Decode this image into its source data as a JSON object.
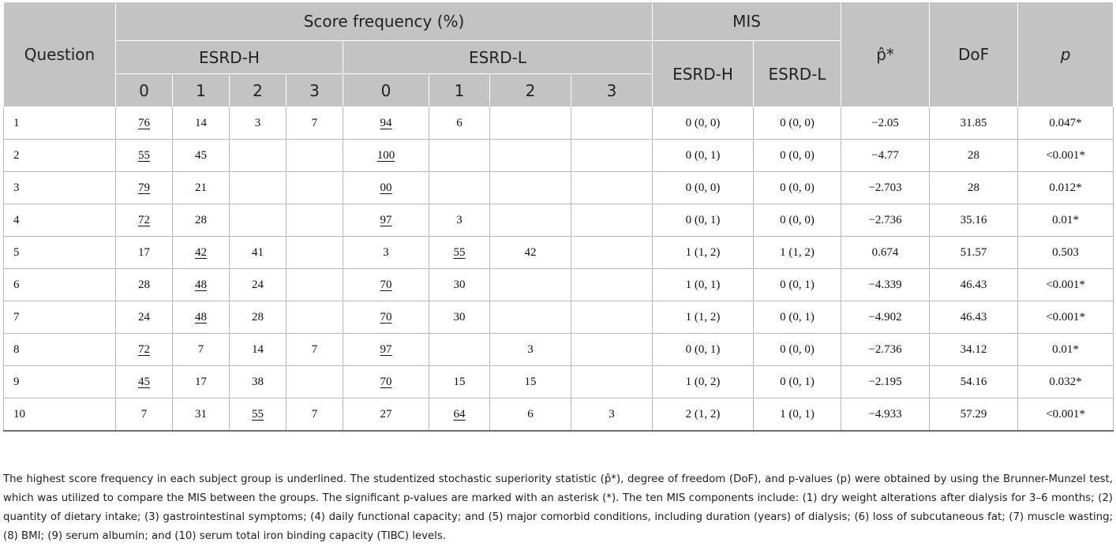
{
  "header": {
    "question": "Question",
    "score_frequency": "Score frequency (%)",
    "mis": "MIS",
    "p_hat": "p̂*",
    "dof": "DoF",
    "p": "p",
    "esrd_h": "ESRD-H",
    "esrd_l": "ESRD-L",
    "scores": [
      "0",
      "1",
      "2",
      "3"
    ]
  },
  "rows": [
    {
      "q": "1",
      "h": [
        "76",
        "14",
        "3",
        "7"
      ],
      "l": [
        "94",
        "6",
        "",
        ""
      ],
      "mis_h": "0 (0, 0)",
      "mis_l": "0 (0, 0)",
      "phat": "−2.05",
      "dof": "31.85",
      "p": "0.047*"
    },
    {
      "q": "2",
      "h": [
        "55",
        "45",
        "",
        ""
      ],
      "l": [
        "100",
        "",
        "",
        ""
      ],
      "mis_h": "0 (0, 1)",
      "mis_l": "0 (0, 0)",
      "phat": "−4.77",
      "dof": "28",
      "p": "<0.001*"
    },
    {
      "q": "3",
      "h": [
        "79",
        "21",
        "",
        ""
      ],
      "l": [
        "00",
        "",
        "",
        ""
      ],
      "mis_h": "0 (0, 0)",
      "mis_l": "0 (0, 0)",
      "phat": "−2.703",
      "dof": "28",
      "p": "0.012*"
    },
    {
      "q": "4",
      "h": [
        "72",
        "28",
        "",
        ""
      ],
      "l": [
        "97",
        "3",
        "",
        ""
      ],
      "mis_h": "0 (0, 1)",
      "mis_l": "0 (0, 0)",
      "phat": "−2.736",
      "dof": "35.16",
      "p": "0.01*"
    },
    {
      "q": "5",
      "h": [
        "17",
        "42",
        "41",
        ""
      ],
      "l": [
        "3",
        "55",
        "42",
        ""
      ],
      "mis_h": "1 (1, 2)",
      "mis_l": "1 (1, 2)",
      "phat": "0.674",
      "dof": "51.57",
      "p": "0.503"
    },
    {
      "q": "6",
      "h": [
        "28",
        "48",
        "24",
        ""
      ],
      "l": [
        "70",
        "30",
        "",
        ""
      ],
      "mis_h": "1 (0, 1)",
      "mis_l": "0 (0, 1)",
      "phat": "−4.339",
      "dof": "46.43",
      "p": "<0.001*"
    },
    {
      "q": "7",
      "h": [
        "24",
        "48",
        "28",
        ""
      ],
      "l": [
        "70",
        "30",
        "",
        ""
      ],
      "mis_h": "1 (1, 2)",
      "mis_l": "0 (0, 1)",
      "phat": "−4.902",
      "dof": "46.43",
      "p": "<0.001*"
    },
    {
      "q": "8",
      "h": [
        "72",
        "7",
        "14",
        "7"
      ],
      "l": [
        "97",
        "",
        "3",
        ""
      ],
      "mis_h": "0 (0, 1)",
      "mis_l": "0 (0, 0)",
      "phat": "−2.736",
      "dof": "34.12",
      "p": "0.01*"
    },
    {
      "q": "9",
      "h": [
        "45",
        "17",
        "38",
        ""
      ],
      "l": [
        "70",
        "15",
        "15",
        ""
      ],
      "mis_h": "1 (0, 2)",
      "mis_l": "0 (0, 1)",
      "phat": "−2.195",
      "dof": "54.16",
      "p": "0.032*"
    },
    {
      "q": "10",
      "h": [
        "7",
        "31",
        "55",
        "7"
      ],
      "l": [
        "27",
        "64",
        "6",
        "3"
      ],
      "mis_h": "2 (1, 2)",
      "mis_l": "1 (0, 1)",
      "phat": "−4.933",
      "dof": "57.29",
      "p": "<0.001*"
    }
  ],
  "underlined": {
    "h": [
      0,
      0,
      0,
      0,
      1,
      1,
      1,
      0,
      0,
      2
    ],
    "l": [
      0,
      0,
      0,
      0,
      1,
      0,
      0,
      0,
      0,
      1
    ]
  },
  "footnote": "The highest score frequency in each subject group is underlined. The studentized stochastic superiority statistic (p̂*), degree of freedom (DoF), and p-values (p) were obtained by using the Brunner-Munzel test, which was utilized to compare the MIS between the groups. The significant p-values are marked with an asterisk (*). The ten MIS components include: (1) dry weight alterations after dialysis for 3–6 months; (2) quantity of dietary intake; (3) gastrointestinal symptoms; (4) daily functional capacity; and (5) major comorbid conditions, including duration (years) of dialysis; (6) loss of subcutaneous fat; (7) muscle wasting; (8) BMI; (9) serum albumin; and (10) serum total iron binding capacity (TIBC) levels."
}
